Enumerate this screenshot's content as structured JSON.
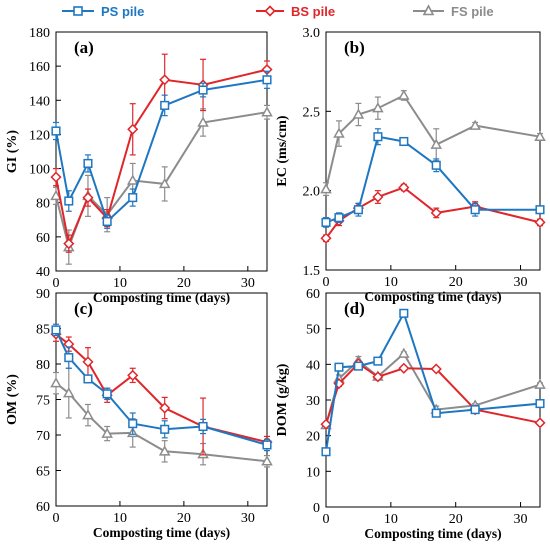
{
  "legend": [
    {
      "label": "PS pile",
      "color": "#1f77c1",
      "marker": "square"
    },
    {
      "label": "BS pile",
      "color": "#e0262a",
      "marker": "diamond"
    },
    {
      "label": "FS pile",
      "color": "#8c8c8c",
      "marker": "triangle"
    }
  ],
  "chart_data": [
    {
      "type": "line",
      "panel_label": "(a)",
      "xlabel": "Composting time (days)",
      "ylabel": "GI (%)",
      "xlim": [
        0,
        33
      ],
      "ylim": [
        40,
        180
      ],
      "xticks": [
        0,
        10,
        20,
        30
      ],
      "yticks": [
        40,
        60,
        80,
        100,
        120,
        140,
        160,
        180
      ],
      "grid": false,
      "x": [
        0,
        2,
        5,
        8,
        12,
        17,
        23,
        33
      ],
      "series": [
        {
          "name": "PS pile",
          "color": "#1f77c1",
          "marker": "square",
          "values": [
            122,
            81,
            103,
            69,
            83,
            137,
            146,
            152
          ],
          "errors": [
            5,
            6,
            5,
            4,
            5,
            6,
            4,
            5
          ]
        },
        {
          "name": "BS pile",
          "color": "#e0262a",
          "marker": "diamond",
          "values": [
            95,
            56,
            83,
            71,
            123,
            152,
            149,
            158
          ],
          "errors": [
            5,
            5,
            5,
            5,
            15,
            15,
            15,
            5
          ]
        },
        {
          "name": "FS pile",
          "color": "#8c8c8c",
          "marker": "triangle",
          "values": [
            84,
            54,
            84,
            73,
            93,
            91,
            127,
            133
          ],
          "errors": [
            5,
            10,
            12,
            10,
            10,
            10,
            8,
            4
          ]
        }
      ]
    },
    {
      "type": "line",
      "panel_label": "(b)",
      "xlabel": "Composting time (days)",
      "ylabel": "EC (ms/cm)",
      "xlim": [
        0,
        33
      ],
      "ylim": [
        1.5,
        3.0
      ],
      "xticks": [
        0,
        10,
        20,
        30
      ],
      "yticks": [
        1.5,
        2.0,
        2.5,
        3.0
      ],
      "ytick_labels": [
        "1.5",
        "2.0",
        "2.5",
        "3.0"
      ],
      "grid": false,
      "x": [
        0,
        2,
        5,
        8,
        12,
        17,
        23,
        33
      ],
      "series": [
        {
          "name": "PS pile",
          "color": "#1f77c1",
          "marker": "square",
          "values": [
            1.8,
            1.83,
            1.88,
            2.34,
            2.31,
            2.16,
            1.88,
            1.88
          ],
          "errors": [
            0.03,
            0.03,
            0.04,
            0.05,
            0.02,
            0.04,
            0.04,
            0.02
          ]
        },
        {
          "name": "BS pile",
          "color": "#e0262a",
          "marker": "diamond",
          "values": [
            1.7,
            1.81,
            1.89,
            1.96,
            2.02,
            1.86,
            1.9,
            1.8
          ],
          "errors": [
            0.02,
            0.03,
            0.03,
            0.04,
            0.02,
            0.03,
            0.03,
            0.02
          ]
        },
        {
          "name": "FS pile",
          "color": "#8c8c8c",
          "marker": "triangle",
          "values": [
            2.01,
            2.36,
            2.48,
            2.52,
            2.6,
            2.29,
            2.41,
            2.34
          ],
          "errors": [
            0.04,
            0.08,
            0.07,
            0.07,
            0.03,
            0.1,
            0.02,
            0.02
          ]
        }
      ]
    },
    {
      "type": "line",
      "panel_label": "(c)",
      "xlabel": "Composting time (days)",
      "ylabel": "OM (%)",
      "xlim": [
        0,
        33
      ],
      "ylim": [
        60,
        90
      ],
      "xticks": [
        0,
        10,
        20,
        30
      ],
      "yticks": [
        60,
        65,
        70,
        75,
        80,
        85,
        90
      ],
      "grid": false,
      "x": [
        0,
        2,
        5,
        8,
        12,
        17,
        23,
        33
      ],
      "series": [
        {
          "name": "PS pile",
          "color": "#1f77c1",
          "marker": "square",
          "values": [
            84.8,
            80.9,
            77.9,
            75.8,
            71.6,
            70.8,
            71.2,
            68.6
          ],
          "errors": [
            0.8,
            1.5,
            0.5,
            0.8,
            1.5,
            1.2,
            1.0,
            0.8
          ]
        },
        {
          "name": "BS pile",
          "color": "#e0262a",
          "marker": "diamond",
          "values": [
            84.2,
            82.8,
            80.3,
            75.6,
            78.4,
            73.8,
            71.2,
            69.0
          ],
          "errors": [
            1.0,
            1.0,
            2.0,
            1.0,
            1.0,
            1.5,
            4.0,
            0.8
          ]
        },
        {
          "name": "FS pile",
          "color": "#8c8c8c",
          "marker": "triangle",
          "values": [
            77.3,
            75.9,
            72.8,
            70.2,
            70.3,
            67.7,
            67.3,
            66.3
          ],
          "errors": [
            1.5,
            3.5,
            1.5,
            1.0,
            2.0,
            1.5,
            1.5,
            0.8
          ]
        }
      ]
    },
    {
      "type": "line",
      "panel_label": "(d)",
      "xlabel": "Composting time (days)",
      "ylabel": "DOM (g/kg)",
      "xlim": [
        0,
        33
      ],
      "ylim": [
        0,
        60
      ],
      "xticks": [
        0,
        10,
        20,
        30
      ],
      "yticks": [
        0,
        10,
        20,
        30,
        40,
        50,
        60
      ],
      "grid": false,
      "x": [
        0,
        2,
        5,
        8,
        12,
        17,
        23,
        33
      ],
      "series": [
        {
          "name": "PS pile",
          "color": "#1f77c1",
          "marker": "square",
          "values": [
            15.5,
            39.2,
            39.5,
            40.9,
            54.3,
            26.3,
            27.3,
            29.0
          ],
          "errors": [
            0.5,
            0.8,
            0.8,
            0.8,
            0.8,
            0.8,
            0.5,
            0.5
          ]
        },
        {
          "name": "BS pile",
          "color": "#e0262a",
          "marker": "diamond",
          "values": [
            23.2,
            34.6,
            40.2,
            36.5,
            38.9,
            38.7,
            27.3,
            23.6
          ],
          "errors": [
            0.5,
            0.8,
            0.8,
            0.5,
            0.5,
            0.5,
            0.5,
            0.5
          ]
        },
        {
          "name": "FS pile",
          "color": "#8c8c8c",
          "marker": "triangle",
          "values": [
            23.0,
            36.0,
            41.0,
            36.6,
            43.0,
            27.3,
            28.5,
            34.3
          ],
          "errors": [
            0.5,
            1.0,
            1.2,
            0.5,
            0.5,
            1.0,
            0.5,
            0.5
          ]
        }
      ]
    }
  ]
}
